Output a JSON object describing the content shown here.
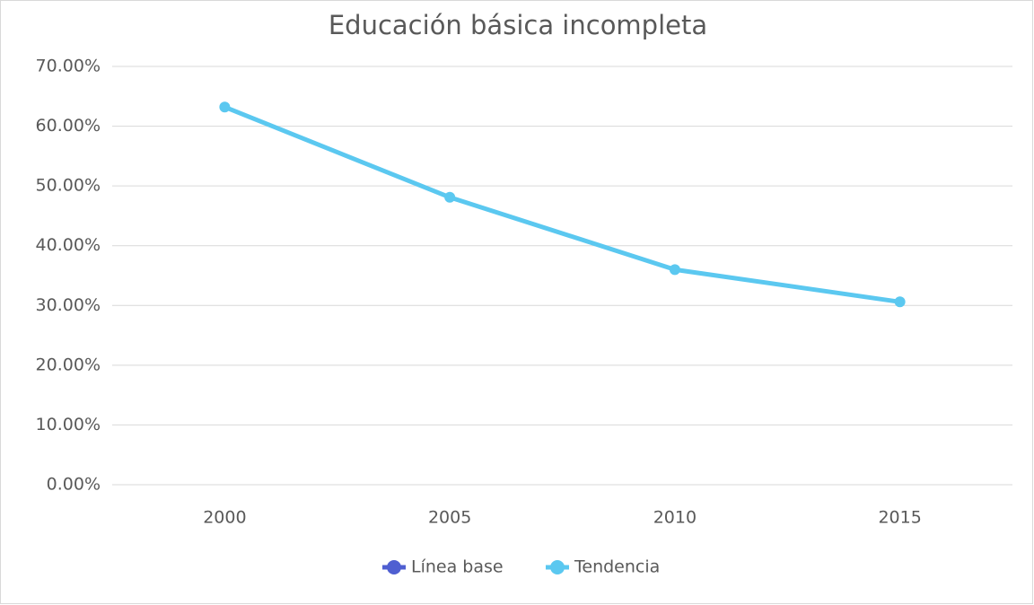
{
  "chart_data": {
    "type": "line",
    "title": "Educación básica incompleta",
    "categories": [
      "2000",
      "2005",
      "2010",
      "2015"
    ],
    "series": [
      {
        "name": "Línea base",
        "color": "#4f5fd1",
        "values": [
          null,
          null,
          null,
          null
        ]
      },
      {
        "name": "Tendencia",
        "color": "#5bc8f0",
        "values": [
          63.2,
          48.1,
          36.0,
          30.6
        ]
      }
    ],
    "ylim": [
      0,
      70
    ],
    "yticks": [
      {
        "value": 0,
        "label": "0.00%"
      },
      {
        "value": 10,
        "label": "10.00%"
      },
      {
        "value": 20,
        "label": "20.00%"
      },
      {
        "value": 30,
        "label": "30.00%"
      },
      {
        "value": 40,
        "label": "40.00%"
      },
      {
        "value": 50,
        "label": "50.00%"
      },
      {
        "value": 60,
        "label": "60.00%"
      },
      {
        "value": 70,
        "label": "70.00%"
      }
    ],
    "grid": true,
    "legend": "bottom"
  }
}
